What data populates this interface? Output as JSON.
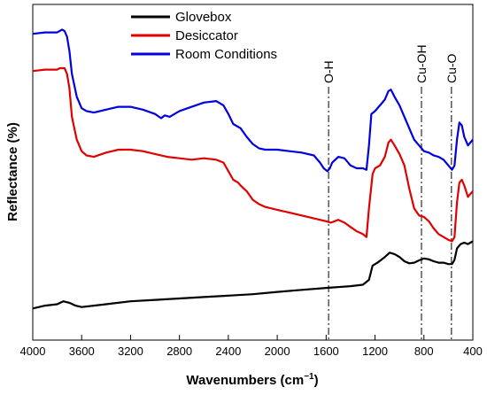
{
  "chart_data": {
    "type": "line",
    "title": "",
    "xlabel": "Wavenumbers (cm",
    "xlabel_sup": "−1",
    "xlabel_close": ")",
    "ylabel": "Reflectance (%)",
    "xlim": [
      4000,
      400
    ],
    "x_reversed": true,
    "ylim": [
      0,
      100
    ],
    "y_tick_labels_shown": false,
    "grid": false,
    "legend_position": "top-center",
    "x_ticks": [
      4000,
      3600,
      3200,
      2800,
      2400,
      2000,
      1600,
      1200,
      800,
      400
    ],
    "series": [
      {
        "name": "Glovebox",
        "color": "#000000",
        "points": [
          [
            4000,
            3
          ],
          [
            3900,
            4
          ],
          [
            3800,
            4.5
          ],
          [
            3750,
            5.5
          ],
          [
            3700,
            5
          ],
          [
            3650,
            4
          ],
          [
            3600,
            3.5
          ],
          [
            3500,
            4
          ],
          [
            3400,
            4.5
          ],
          [
            3200,
            5.5
          ],
          [
            3000,
            6
          ],
          [
            2800,
            6.5
          ],
          [
            2600,
            7
          ],
          [
            2400,
            7.5
          ],
          [
            2200,
            8
          ],
          [
            2000,
            8.8
          ],
          [
            1800,
            9.5
          ],
          [
            1600,
            10.2
          ],
          [
            1400,
            10.8
          ],
          [
            1300,
            11.3
          ],
          [
            1250,
            13
          ],
          [
            1220,
            18
          ],
          [
            1180,
            19
          ],
          [
            1120,
            21
          ],
          [
            1080,
            22.5
          ],
          [
            1040,
            22
          ],
          [
            1000,
            21
          ],
          [
            960,
            19.5
          ],
          [
            920,
            18.8
          ],
          [
            880,
            19
          ],
          [
            840,
            19.8
          ],
          [
            800,
            20.5
          ],
          [
            760,
            20.2
          ],
          [
            720,
            19.5
          ],
          [
            680,
            19
          ],
          [
            640,
            19
          ],
          [
            600,
            18.5
          ],
          [
            570,
            18.5
          ],
          [
            550,
            20
          ],
          [
            530,
            24
          ],
          [
            500,
            25.5
          ],
          [
            470,
            26
          ],
          [
            440,
            25.5
          ],
          [
            420,
            26
          ],
          [
            400,
            26.5
          ]
        ]
      },
      {
        "name": "Desiccator",
        "color": "#e00000",
        "points": [
          [
            4000,
            86
          ],
          [
            3900,
            86.5
          ],
          [
            3800,
            86.5
          ],
          [
            3780,
            87
          ],
          [
            3740,
            87
          ],
          [
            3720,
            85
          ],
          [
            3700,
            80
          ],
          [
            3680,
            70
          ],
          [
            3640,
            62
          ],
          [
            3600,
            58
          ],
          [
            3560,
            56.5
          ],
          [
            3500,
            56
          ],
          [
            3400,
            57.5
          ],
          [
            3300,
            58.5
          ],
          [
            3200,
            58.5
          ],
          [
            3100,
            58
          ],
          [
            3000,
            57
          ],
          [
            2900,
            56
          ],
          [
            2800,
            55.5
          ],
          [
            2700,
            55
          ],
          [
            2600,
            55.5
          ],
          [
            2500,
            55
          ],
          [
            2440,
            54
          ],
          [
            2400,
            51
          ],
          [
            2360,
            48
          ],
          [
            2320,
            47
          ],
          [
            2300,
            46
          ],
          [
            2250,
            44
          ],
          [
            2200,
            41
          ],
          [
            2150,
            39.5
          ],
          [
            2100,
            38.5
          ],
          [
            2000,
            37.5
          ],
          [
            1900,
            36.5
          ],
          [
            1800,
            35.5
          ],
          [
            1700,
            34.5
          ],
          [
            1600,
            33.5
          ],
          [
            1560,
            33
          ],
          [
            1500,
            34
          ],
          [
            1450,
            33
          ],
          [
            1400,
            31.5
          ],
          [
            1350,
            30
          ],
          [
            1300,
            29
          ],
          [
            1270,
            28
          ],
          [
            1250,
            38
          ],
          [
            1220,
            50
          ],
          [
            1200,
            52
          ],
          [
            1160,
            53
          ],
          [
            1120,
            56
          ],
          [
            1090,
            61
          ],
          [
            1070,
            62
          ],
          [
            1040,
            60
          ],
          [
            1000,
            57
          ],
          [
            960,
            53
          ],
          [
            920,
            45
          ],
          [
            880,
            38
          ],
          [
            840,
            35.5
          ],
          [
            800,
            35
          ],
          [
            760,
            33.5
          ],
          [
            720,
            31
          ],
          [
            680,
            29
          ],
          [
            640,
            28
          ],
          [
            600,
            27
          ],
          [
            570,
            26.5
          ],
          [
            550,
            28
          ],
          [
            530,
            40
          ],
          [
            510,
            47
          ],
          [
            490,
            48
          ],
          [
            470,
            46
          ],
          [
            440,
            42
          ],
          [
            420,
            43
          ],
          [
            400,
            44
          ]
        ]
      },
      {
        "name": "Room Conditions",
        "color": "#0000e0",
        "points": [
          [
            4000,
            99
          ],
          [
            3900,
            99.5
          ],
          [
            3800,
            99.5
          ],
          [
            3760,
            100.5
          ],
          [
            3740,
            100
          ],
          [
            3720,
            98
          ],
          [
            3700,
            93
          ],
          [
            3680,
            85
          ],
          [
            3640,
            77
          ],
          [
            3600,
            73
          ],
          [
            3560,
            72
          ],
          [
            3500,
            71.5
          ],
          [
            3400,
            72.5
          ],
          [
            3300,
            73.5
          ],
          [
            3200,
            73.5
          ],
          [
            3100,
            72.5
          ],
          [
            3000,
            71
          ],
          [
            2950,
            69.5
          ],
          [
            2920,
            70.5
          ],
          [
            2880,
            70
          ],
          [
            2800,
            72
          ],
          [
            2700,
            73.5
          ],
          [
            2600,
            75
          ],
          [
            2500,
            75.5
          ],
          [
            2440,
            74
          ],
          [
            2400,
            71
          ],
          [
            2360,
            67.5
          ],
          [
            2300,
            66
          ],
          [
            2250,
            63
          ],
          [
            2200,
            60.5
          ],
          [
            2150,
            59
          ],
          [
            2100,
            58.5
          ],
          [
            2000,
            58.5
          ],
          [
            1900,
            58
          ],
          [
            1800,
            57.5
          ],
          [
            1700,
            56.5
          ],
          [
            1650,
            54
          ],
          [
            1620,
            52
          ],
          [
            1590,
            51
          ],
          [
            1570,
            52
          ],
          [
            1550,
            54
          ],
          [
            1500,
            56
          ],
          [
            1450,
            55.5
          ],
          [
            1400,
            53
          ],
          [
            1350,
            52
          ],
          [
            1300,
            52
          ],
          [
            1270,
            51.5
          ],
          [
            1250,
            60
          ],
          [
            1230,
            71
          ],
          [
            1200,
            72
          ],
          [
            1160,
            74
          ],
          [
            1120,
            76
          ],
          [
            1090,
            79
          ],
          [
            1070,
            79.5
          ],
          [
            1040,
            77
          ],
          [
            1000,
            74
          ],
          [
            960,
            70
          ],
          [
            920,
            66
          ],
          [
            880,
            62
          ],
          [
            840,
            60
          ],
          [
            800,
            58
          ],
          [
            760,
            57.5
          ],
          [
            720,
            56.5
          ],
          [
            680,
            56
          ],
          [
            640,
            55
          ],
          [
            600,
            53
          ],
          [
            570,
            51.5
          ],
          [
            550,
            53
          ],
          [
            530,
            62
          ],
          [
            510,
            68
          ],
          [
            490,
            67
          ],
          [
            470,
            63
          ],
          [
            440,
            60
          ],
          [
            420,
            61
          ],
          [
            400,
            62
          ]
        ]
      }
    ],
    "annotations": [
      {
        "label": "O-H",
        "x": 1580
      },
      {
        "label": "Cu-OH",
        "x": 820
      },
      {
        "label": "Cu-O",
        "x": 575
      }
    ]
  }
}
